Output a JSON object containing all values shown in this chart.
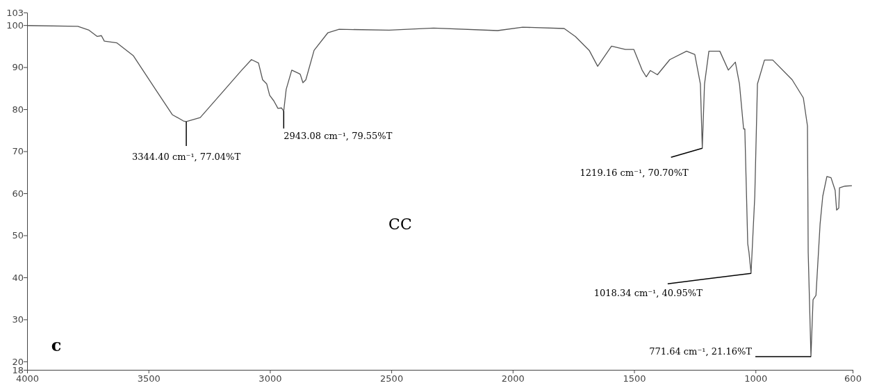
{
  "chart_data": {
    "type": "line",
    "x": [
      3997,
      3791,
      3745,
      3711,
      3694,
      3682,
      3631,
      3562,
      3471,
      3402,
      3356,
      3344.4,
      3287,
      3196,
      3116,
      3076,
      3047,
      3030,
      3013,
      3001,
      2984,
      2967,
      2952,
      2943.08,
      2933,
      2910,
      2881,
      2875,
      2864,
      2852,
      2818,
      2761,
      2715,
      2509,
      2326,
      2062,
      1959,
      1788,
      1742,
      1685,
      1650,
      1593,
      1536,
      1501,
      1467,
      1450,
      1433,
      1404,
      1353,
      1284,
      1250,
      1227,
      1219.16,
      1210,
      1192,
      1147,
      1112,
      1083,
      1066,
      1049,
      1044,
      1032,
      1027,
      1018.34,
      1003,
      992,
      963,
      929,
      849,
      803,
      786,
      783,
      771.64,
      763,
      751,
      734,
      723,
      706,
      689,
      672,
      666,
      657,
      654,
      631,
      603
    ],
    "series": [
      {
        "color": "#555555",
        "values": [
          99.9,
          99.7,
          98.8,
          97.3,
          97.5,
          96.2,
          95.8,
          92.7,
          84.7,
          78.7,
          77.2,
          77.04,
          78,
          84,
          89.3,
          91.8,
          91,
          87,
          86,
          83.3,
          82,
          80.2,
          80.3,
          79.55,
          84.7,
          89.3,
          88.5,
          88.3,
          86.3,
          87,
          94,
          98.2,
          99,
          98.8,
          99.3,
          98.7,
          99.5,
          99.2,
          97.3,
          94,
          90.2,
          95,
          94.2,
          94.2,
          89.3,
          87.7,
          89.2,
          88.2,
          91.8,
          93.8,
          93,
          86,
          70.7,
          86,
          93.8,
          93.8,
          89.3,
          91.2,
          86,
          75.3,
          75.3,
          48,
          46,
          40.95,
          59.3,
          86,
          91.7,
          91.7,
          87,
          82.7,
          76,
          46,
          21.16,
          34.7,
          35.7,
          52.7,
          59.3,
          64,
          63.7,
          60.7,
          56,
          56.5,
          61.3,
          61.7,
          61.8
        ]
      }
    ],
    "xlim": [
      4000,
      600
    ],
    "ylim": [
      18,
      103
    ],
    "xticks": [
      4000,
      3500,
      3000,
      2500,
      2000,
      1500,
      1000,
      600
    ],
    "yticks": [
      103,
      100,
      90,
      80,
      70,
      60,
      50,
      40,
      30,
      20,
      18
    ],
    "marker": "none",
    "line_style": "solid",
    "annotations": [
      {
        "text": "3344.40 cm⁻¹, 77.04%T",
        "x": 3344.4,
        "y": 77.04
      },
      {
        "text": "2943.08 cm⁻¹, 79.55%T",
        "x": 2943.08,
        "y": 79.55
      },
      {
        "text": "1219.16 cm⁻¹, 70.70%T",
        "x": 1219.16,
        "y": 70.7
      },
      {
        "text": "1018.34 cm⁻¹, 40.95%T",
        "x": 1018.34,
        "y": 40.95
      },
      {
        "text": "771.64 cm⁻¹, 21.16%T",
        "x": 771.64,
        "y": 21.16
      },
      "CC",
      "c"
    ]
  }
}
